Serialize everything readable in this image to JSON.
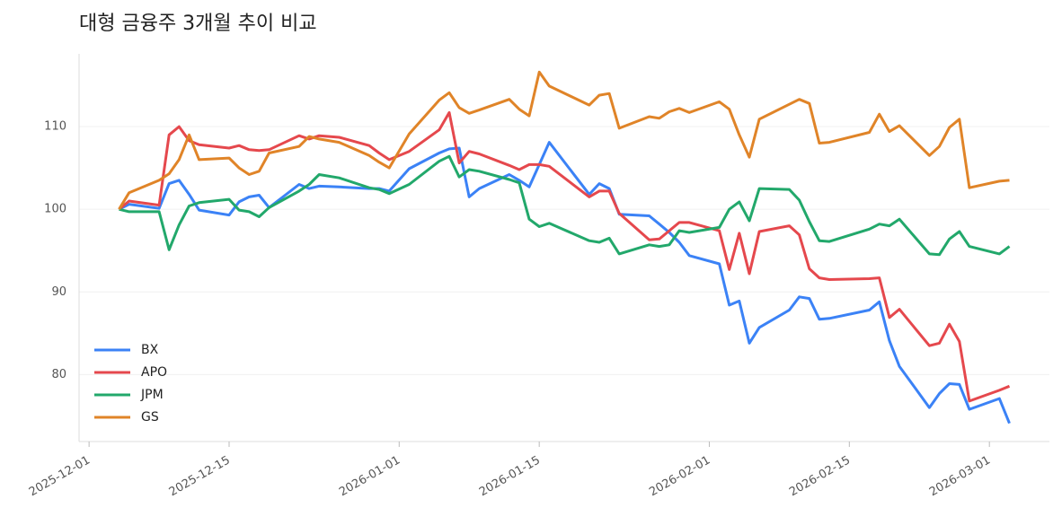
{
  "chart_data": {
    "type": "line",
    "title": "대형 금융주 3개월 추이 비교",
    "x": [
      "2025-12-04",
      "2025-12-05",
      "2025-12-08",
      "2025-12-09",
      "2025-12-10",
      "2025-12-11",
      "2025-12-12",
      "2025-12-15",
      "2025-12-16",
      "2025-12-17",
      "2025-12-18",
      "2025-12-19",
      "2025-12-22",
      "2025-12-23",
      "2025-12-24",
      "2025-12-26",
      "2025-12-29",
      "2025-12-30",
      "2025-12-31",
      "2026-01-02",
      "2026-01-05",
      "2026-01-06",
      "2026-01-07",
      "2026-01-08",
      "2026-01-09",
      "2026-01-12",
      "2026-01-13",
      "2026-01-14",
      "2026-01-15",
      "2026-01-16",
      "2026-01-20",
      "2026-01-21",
      "2026-01-22",
      "2026-01-23",
      "2026-01-26",
      "2026-01-27",
      "2026-01-28",
      "2026-01-29",
      "2026-01-30",
      "2026-02-02",
      "2026-02-03",
      "2026-02-04",
      "2026-02-05",
      "2026-02-06",
      "2026-02-09",
      "2026-02-10",
      "2026-02-11",
      "2026-02-12",
      "2026-02-13",
      "2026-02-17",
      "2026-02-18",
      "2026-02-19",
      "2026-02-20",
      "2026-02-23",
      "2026-02-24",
      "2026-02-25",
      "2026-02-26",
      "2026-02-27",
      "2026-03-02",
      "2026-03-03"
    ],
    "series": [
      {
        "name": "BX",
        "color": "#3b82f6",
        "values": [
          100,
          100.6,
          100.1,
          103.1,
          103.5,
          101.8,
          99.9,
          99.3,
          100.9,
          101.5,
          101.7,
          100.2,
          103,
          102.5,
          102.8,
          102.7,
          102.5,
          102.5,
          102.2,
          104.9,
          106.8,
          107.3,
          107.4,
          101.5,
          102.5,
          104.2,
          103.5,
          102.7,
          105.4,
          108.1,
          101.8,
          103.1,
          102.5,
          99.4,
          99.2,
          98.2,
          97.2,
          96,
          94.4,
          93.4,
          88.4,
          88.9,
          83.8,
          85.7,
          87.8,
          89.4,
          89.2,
          86.7,
          86.8,
          87.8,
          88.8,
          84.1,
          81,
          76,
          77.7,
          78.9,
          78.8,
          75.8,
          77.1,
          74.1
        ]
      },
      {
        "name": "APO",
        "color": "#e5484d",
        "values": [
          100,
          101,
          100.5,
          109,
          110,
          108.3,
          107.8,
          107.4,
          107.7,
          107.2,
          107.1,
          107.2,
          108.9,
          108.5,
          108.9,
          108.7,
          107.7,
          106.8,
          106,
          107,
          109.6,
          111.7,
          105.6,
          107,
          106.7,
          105.3,
          104.8,
          105.4,
          105.4,
          105.2,
          101.5,
          102.2,
          102.2,
          99.5,
          96.3,
          96.4,
          97.4,
          98.4,
          98.4,
          97.4,
          92.7,
          97.1,
          92.2,
          97.3,
          98,
          96.9,
          92.8,
          91.7,
          91.5,
          91.6,
          91.7,
          86.9,
          87.9,
          83.5,
          83.8,
          86.1,
          84,
          76.8,
          78.1,
          78.6
        ]
      },
      {
        "name": "JPM",
        "color": "#22a86b",
        "values": [
          100,
          99.7,
          99.7,
          95.1,
          98.1,
          100.4,
          100.8,
          101.2,
          99.9,
          99.7,
          99.1,
          100.2,
          102.2,
          103,
          104.2,
          103.8,
          102.6,
          102.4,
          101.9,
          103,
          105.8,
          106.4,
          103.9,
          104.8,
          104.6,
          103.6,
          103.2,
          98.8,
          97.9,
          98.3,
          96.2,
          96,
          96.5,
          94.6,
          95.7,
          95.5,
          95.7,
          97.4,
          97.2,
          97.8,
          100,
          100.9,
          98.6,
          102.5,
          102.4,
          101.1,
          98.5,
          96.2,
          96.1,
          97.6,
          98.2,
          98,
          98.8,
          94.6,
          94.5,
          96.4,
          97.3,
          95.5,
          94.6,
          95.5
        ]
      },
      {
        "name": "GS",
        "color": "#e08428",
        "values": [
          100,
          102,
          103.5,
          104.3,
          106,
          109,
          106,
          106.2,
          105,
          104.2,
          104.6,
          106.8,
          107.6,
          108.8,
          108.5,
          108.1,
          106.5,
          105.7,
          105,
          109.1,
          113.2,
          114.1,
          112.3,
          111.6,
          112,
          113.3,
          112.1,
          111.3,
          116.6,
          114.9,
          112.6,
          113.8,
          114,
          109.8,
          111.2,
          111,
          111.8,
          112.2,
          111.7,
          113,
          112.1,
          109,
          106.3,
          110.9,
          112.7,
          113.3,
          112.8,
          108,
          108.1,
          109.3,
          111.5,
          109.4,
          110.1,
          106.5,
          107.6,
          109.9,
          110.9,
          102.6,
          103.4,
          103.5
        ]
      }
    ],
    "xlim": [
      "2025-11-30",
      "2026-03-07"
    ],
    "xticks": [
      "2025-12-01",
      "2025-12-15",
      "2026-01-01",
      "2026-01-15",
      "2026-02-01",
      "2026-02-15",
      "2026-03-01"
    ],
    "ylim": [
      71.9,
      118.8
    ],
    "yticks": [
      80,
      90,
      100,
      110
    ],
    "grid": true,
    "legend": "lower-left"
  }
}
